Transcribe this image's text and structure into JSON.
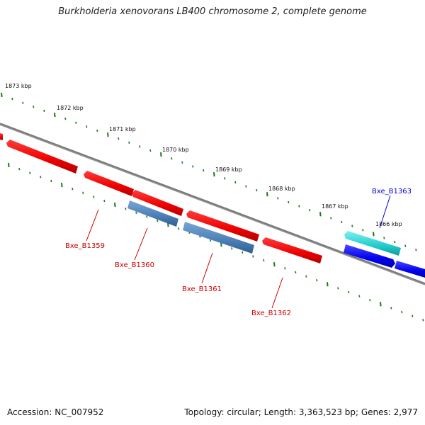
{
  "title": "Burkholderia xenovorans LB400 chromosome 2, complete genome",
  "footer": {
    "accession": "Accession: NC_007952",
    "summary": "Topology: circular; Length: 3,363,523 bp; Genes: 2,977"
  },
  "colors": {
    "backbone": "#7a7a7a",
    "tick": "#1a7a1a",
    "forward_gene": "#ee0000",
    "reverse_gene": "#4a7fb5",
    "highlight_forward": "#22cccc",
    "highlight_reverse": "#0000ee",
    "label_red": "#cc0000",
    "label_blue": "#0000cc"
  },
  "ruler": {
    "unit": "kbp",
    "labels": [
      "1873 kbp",
      "1872 kbp",
      "1871 kbp",
      "1870 kbp",
      "1869 kbp",
      "1868 kbp",
      "1867 kbp",
      "1866 kbp"
    ]
  },
  "gene_labels": [
    "Bxe_B1359",
    "Bxe_B1360",
    "Bxe_B1361",
    "Bxe_B1362",
    "Bxe_B1363"
  ]
}
